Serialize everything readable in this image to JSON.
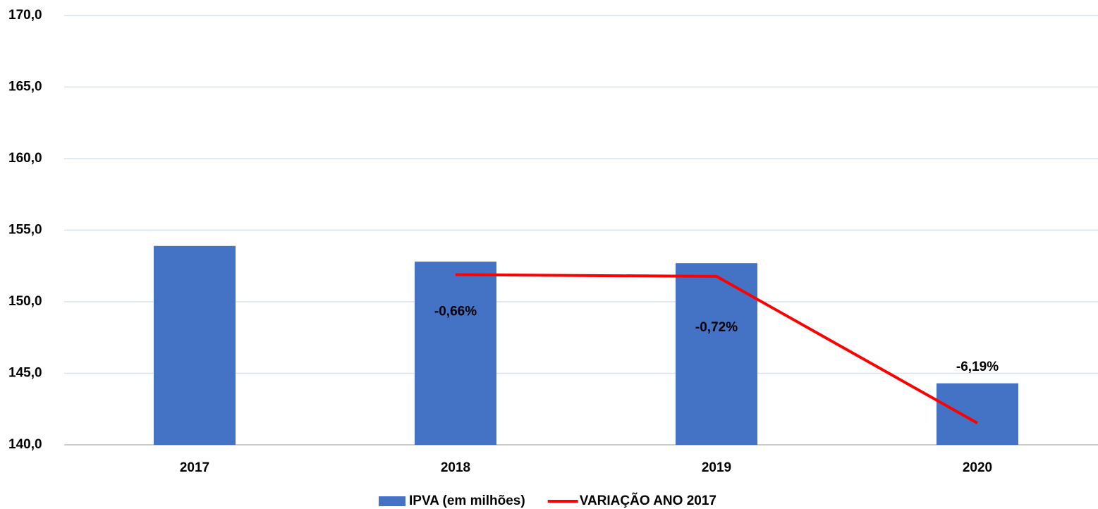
{
  "chart_data": {
    "type": "bar_line",
    "categories": [
      "2017",
      "2018",
      "2019",
      "2020"
    ],
    "series": [
      {
        "name": "IPVA (em milhões)",
        "type": "bar",
        "color": "#4472c4",
        "values": [
          153.9,
          152.8,
          152.7,
          144.3
        ]
      },
      {
        "name": "VARIAÇÃO ANO 2017",
        "type": "line",
        "axis": "y2",
        "color": "#ff0000",
        "values": [
          null,
          -0.66,
          -0.72,
          -6.19
        ],
        "value_labels": [
          null,
          "-0,66%",
          "-0,72%",
          "-6,19%"
        ]
      }
    ],
    "ylim": [
      140,
      170
    ],
    "yticks": [
      {
        "value": 140,
        "label": "140,0"
      },
      {
        "value": 145,
        "label": "145,0"
      },
      {
        "value": 150,
        "label": "150,0"
      },
      {
        "value": 155,
        "label": "155,0"
      },
      {
        "value": 160,
        "label": "160,0"
      },
      {
        "value": 165,
        "label": "165,0"
      },
      {
        "value": 170,
        "label": "170,0"
      }
    ],
    "y2lim": [
      -7,
      9
    ],
    "grid": true,
    "legend": "bottom"
  }
}
